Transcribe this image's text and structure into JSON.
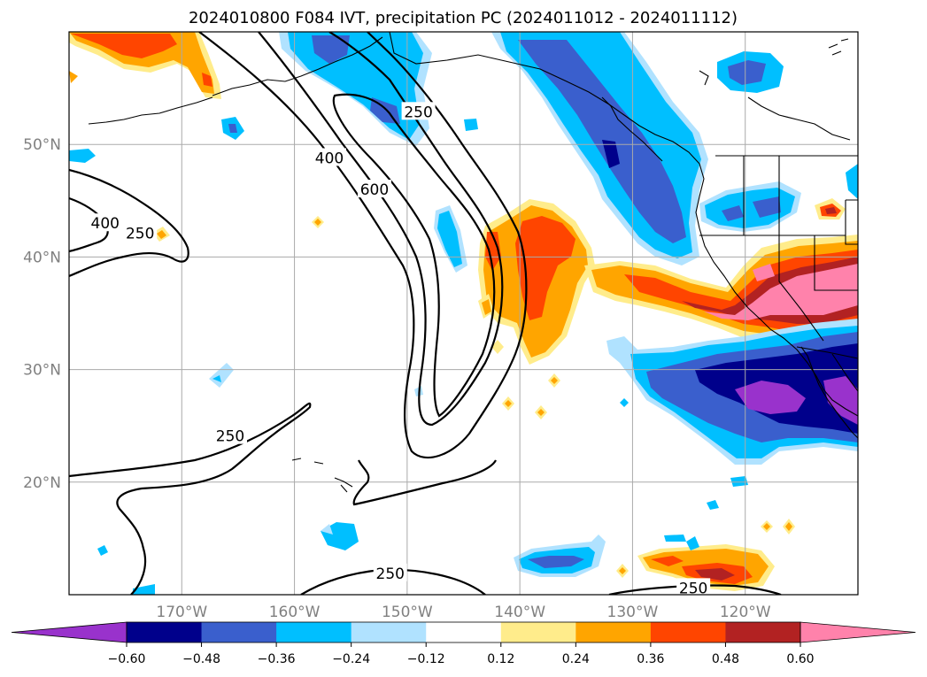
{
  "title": "2024010800 F084 IVT, precipitation PC (2024011012 - 2024011112)",
  "map": {
    "projection": "PlateCarree",
    "lon_range": [
      -180,
      -110
    ],
    "lat_range": [
      10,
      60
    ],
    "gridlines": true,
    "lon_ticks": [
      {
        "lon": -170,
        "label": "170°W"
      },
      {
        "lon": -160,
        "label": "160°W"
      },
      {
        "lon": -150,
        "label": "150°W"
      },
      {
        "lon": -140,
        "label": "140°W"
      },
      {
        "lon": -130,
        "label": "130°W"
      },
      {
        "lon": -120,
        "label": "120°W"
      }
    ],
    "lat_ticks": [
      {
        "lat": 50,
        "label": "50°N"
      },
      {
        "lat": 40,
        "label": "40°N"
      },
      {
        "lat": 30,
        "label": "30°N"
      },
      {
        "lat": 20,
        "label": "20°N"
      }
    ],
    "ivt_contour_labels": [
      {
        "lon": -149,
        "lat": 52.9,
        "text": "250"
      },
      {
        "lon": -156.9,
        "lat": 48.8,
        "text": "400"
      },
      {
        "lon": -152.9,
        "lat": 46.0,
        "text": "600"
      },
      {
        "lon": -173.7,
        "lat": 42.1,
        "text": "250"
      },
      {
        "lon": -176.8,
        "lat": 43.0,
        "text": "400"
      },
      {
        "lon": -165.7,
        "lat": 24.1,
        "text": "250"
      },
      {
        "lon": -151.5,
        "lat": 11.9,
        "text": "250"
      },
      {
        "lon": -124.6,
        "lat": 10.6,
        "text": "250"
      }
    ]
  },
  "colorbar": {
    "levels": [
      -0.6,
      -0.48,
      -0.36,
      -0.24,
      -0.12,
      0.12,
      0.24,
      0.36,
      0.48,
      0.6
    ],
    "tick_labels": [
      "−0.60",
      "−0.48",
      "−0.36",
      "−0.24",
      "−0.12",
      "0.12",
      "0.24",
      "0.36",
      "0.48",
      "0.60"
    ],
    "colors": [
      "#9932cc",
      "#00008b",
      "#3a5fcd",
      "#00bfff",
      "#b0e2ff",
      "#ffffff",
      "#ffec8b",
      "#ffa500",
      "#ff4500",
      "#b22222",
      "#ff82ab"
    ],
    "extend": "both"
  },
  "colors": {
    "purple": "#9932cc",
    "navy": "#00008b",
    "royal": "#3a5fcd",
    "sky": "#00bfff",
    "pale_blue": "#b0e2ff",
    "pale_yellow": "#ffec8b",
    "orange": "#ffa500",
    "red_orange": "#ff4500",
    "firebrick": "#b22222",
    "pink": "#ff82ab"
  }
}
